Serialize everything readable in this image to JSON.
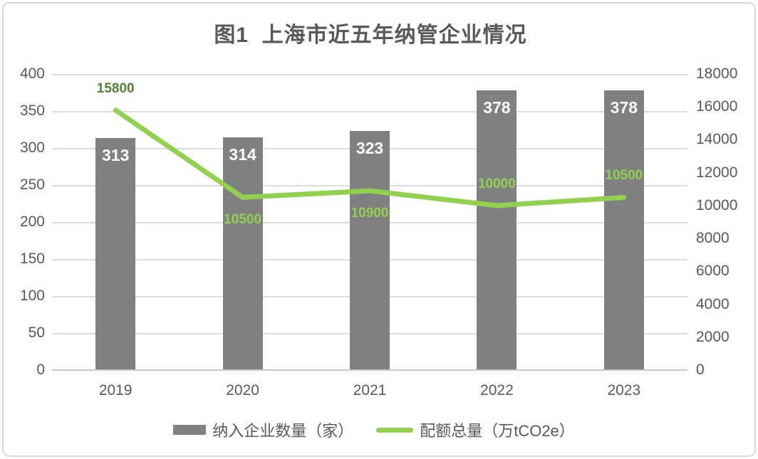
{
  "page": {
    "background": "#FFFFFF",
    "frame_border_color": "#D9D9D9"
  },
  "chart_data": {
    "type": "combo-bar-line",
    "title": "图1  上海市近五年纳管企业情况",
    "title_color": "#595959",
    "categories": [
      "2019",
      "2020",
      "2021",
      "2022",
      "2023"
    ],
    "series": [
      {
        "name": "纳入企业数量（家）",
        "type": "bar",
        "axis": "left",
        "color": "#808080",
        "values": [
          313,
          314,
          323,
          378,
          378
        ],
        "data_label_color": "#FFFFFF"
      },
      {
        "name": "配额总量（万tCO2e）",
        "type": "line",
        "axis": "right",
        "color": "#92D050",
        "values": [
          15800,
          10500,
          10900,
          10000,
          10500
        ],
        "data_labels": [
          {
            "text": "15800",
            "placement": "above",
            "color": "#548235"
          },
          {
            "text": "10500",
            "placement": "below",
            "color": "#92D050"
          },
          {
            "text": "10900",
            "placement": "below",
            "color": "#92D050"
          },
          {
            "text": "10000",
            "placement": "above",
            "color": "#92D050"
          },
          {
            "text": "10500",
            "placement": "above",
            "color": "#92D050"
          }
        ]
      }
    ],
    "left_axis": {
      "min": 0,
      "max": 400,
      "step": 50,
      "tick_labels": [
        "0",
        "50",
        "100",
        "150",
        "200",
        "250",
        "300",
        "350",
        "400"
      ]
    },
    "right_axis": {
      "min": 0,
      "max": 18000,
      "step": 2000,
      "tick_labels": [
        "0",
        "2000",
        "4000",
        "6000",
        "8000",
        "10000",
        "12000",
        "14000",
        "16000",
        "18000"
      ]
    },
    "grid": {
      "show": true,
      "color": "#DCDCDC"
    },
    "axis_text_color": "#595959",
    "legend_position": "bottom"
  }
}
